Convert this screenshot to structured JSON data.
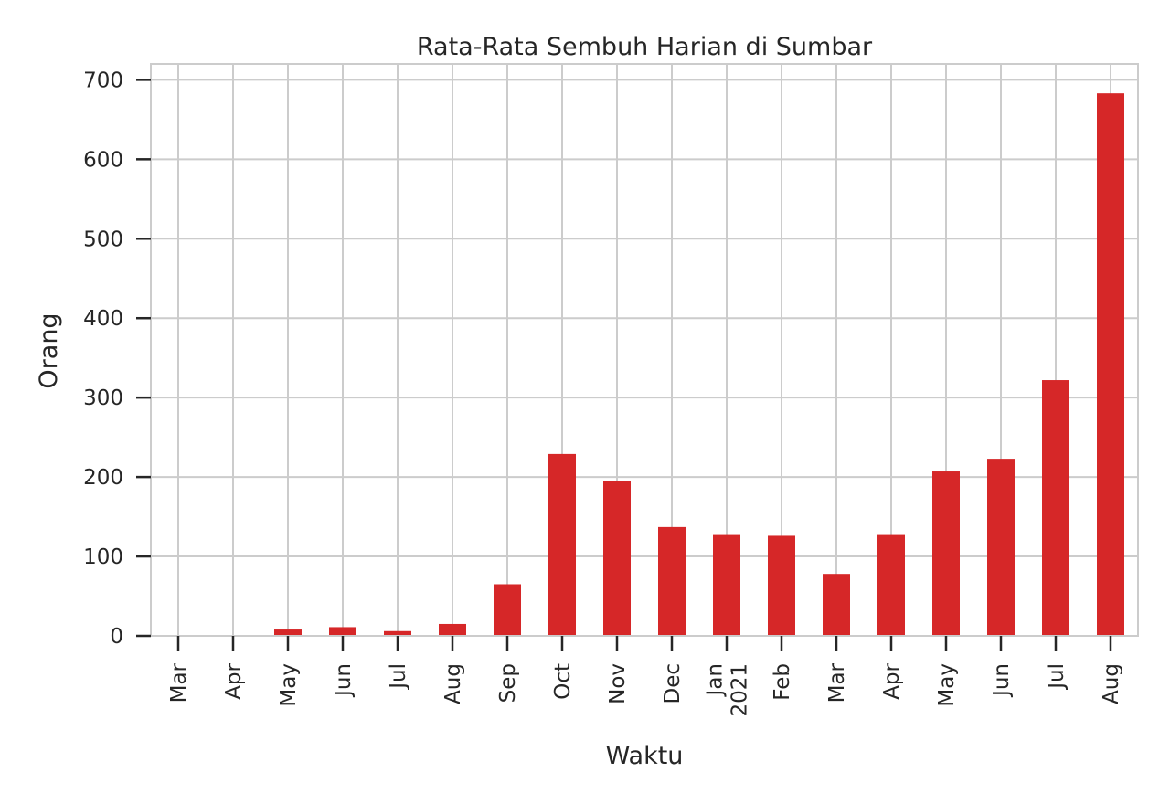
{
  "chart_data": {
    "type": "bar",
    "title": "Rata-Rata Sembuh Harian di Sumbar",
    "xlabel": "Waktu",
    "ylabel": "Orang",
    "ylim": [
      0,
      720
    ],
    "yticks": [
      0,
      100,
      200,
      300,
      400,
      500,
      600,
      700
    ],
    "grid": true,
    "categories": [
      "Mar",
      "Apr",
      "May",
      "Jun",
      "Jul",
      "Aug",
      "Sep",
      "Oct",
      "Nov",
      "Dec",
      "Jan\n2021",
      "Feb",
      "Mar",
      "Apr",
      "May",
      "Jun",
      "Jul",
      "Aug"
    ],
    "series": [
      {
        "values": [
          0.1,
          0.4,
          8,
          11,
          6,
          15,
          65,
          229,
          195,
          137,
          127,
          126,
          78,
          127,
          207,
          223,
          322,
          683
        ],
        "color": "#d62728"
      }
    ]
  }
}
